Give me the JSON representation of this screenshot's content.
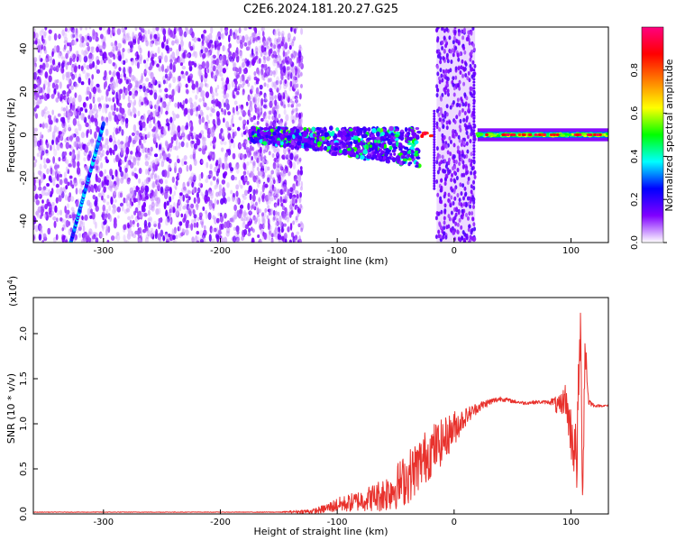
{
  "figure": {
    "title": "C2E6.2024.181.20.27.G25"
  },
  "colorbar": {
    "label": "Normalized spectral amplitude",
    "ticks": [
      "0.0",
      "0.2",
      "0.4",
      "0.6",
      "0.8"
    ],
    "range": [
      0,
      1
    ],
    "colormap": [
      "#ffffff",
      "#8000ff",
      "#0000ff",
      "#00ffff",
      "#00ff00",
      "#ffff00",
      "#ff8000",
      "#ff0000",
      "#ff0080"
    ]
  },
  "chart_data": [
    {
      "type": "heatmap",
      "title": "",
      "xlabel": "Height of straight line (km)",
      "ylabel": "Frequency (Hz)",
      "xlim": [
        -360,
        132
      ],
      "ylim": [
        -50,
        50
      ],
      "xticks": [
        -300,
        -200,
        -100,
        0,
        100
      ],
      "xtick_labels": [
        "-300",
        "-200",
        "-100",
        "0",
        "100"
      ],
      "yticks": [
        -40,
        -20,
        0,
        20,
        40
      ],
      "ytick_labels": [
        "-40",
        "-20",
        "0",
        "20",
        "40"
      ],
      "features": [
        {
          "name": "broadband noise",
          "x_range": [
            -360,
            -130
          ],
          "y_range": [
            -50,
            50
          ]
        },
        {
          "name": "slanted streak",
          "x_start": -328,
          "y_start": -50,
          "x_end": -300,
          "y_end": 5
        },
        {
          "name": "band near 0 Hz",
          "x_range": [
            -175,
            -30
          ],
          "y_center": 0
        },
        {
          "name": "vertical noise band",
          "x_range": [
            -15,
            18
          ],
          "y_range": [
            -50,
            50
          ]
        },
        {
          "name": "narrow line at 0 Hz",
          "x_range": [
            20,
            132
          ],
          "y_center": 0
        }
      ]
    },
    {
      "type": "line",
      "title": "",
      "xlabel": "Height of straight line (km)",
      "ylabel": "SNR (10 * v/v)",
      "y_multiplier": "(x10",
      "y_multiplier_exp": "4",
      "y_multiplier_close": ")",
      "xlim": [
        -360,
        132
      ],
      "ylim": [
        0,
        24000
      ],
      "xticks": [
        -300,
        -200,
        -100,
        0,
        100
      ],
      "xtick_labels": [
        "-300",
        "-200",
        "-100",
        "0",
        "100"
      ],
      "yticks": [
        0,
        5000,
        10000,
        15000,
        20000
      ],
      "ytick_labels": [
        "0.0",
        "0.5",
        "1.0",
        "1.5",
        "2.0"
      ],
      "color": "#e8312c",
      "series": [
        {
          "x": [
            -360,
            -300,
            -200,
            -150,
            -120,
            -110,
            -100,
            -90,
            -80,
            -70,
            -60,
            -50,
            -40,
            -30,
            -20,
            -10,
            0,
            10,
            20,
            30,
            40,
            50,
            60,
            70,
            80,
            85,
            90,
            95,
            100,
            105,
            108,
            110,
            112,
            115,
            120,
            132
          ],
          "values": [
            200,
            200,
            200,
            200,
            300,
            600,
            1000,
            1200,
            1500,
            1800,
            2200,
            3000,
            4000,
            5500,
            7000,
            8000,
            9500,
            10800,
            11800,
            12400,
            12800,
            12500,
            12300,
            12400,
            12400,
            12500,
            11500,
            13000,
            9000,
            6000,
            21000,
            2000,
            19000,
            12500,
            12000,
            12000
          ],
          "noise_amplitude": [
            30,
            30,
            30,
            40,
            300,
            500,
            800,
            1000,
            1200,
            1500,
            2000,
            2500,
            3000,
            3000,
            3000,
            2500,
            2000,
            1000,
            600,
            400,
            300,
            200,
            200,
            200,
            200,
            500,
            1500,
            1500,
            3000,
            4000,
            4000,
            2000,
            3000,
            500,
            150,
            100
          ]
        }
      ]
    }
  ]
}
